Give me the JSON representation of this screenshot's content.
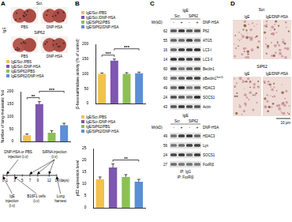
{
  "figure": {
    "A": {
      "label": "A",
      "side_label": "IgE",
      "rows": [
        "Scr.",
        "SiP62"
      ],
      "columns": [
        "PBS",
        "DNP-HSA"
      ]
    },
    "timeline": {
      "days": [
        0,
        1,
        3,
        5,
        7,
        9,
        12,
        14
      ],
      "unit": "(days)",
      "above": [
        {
          "text": "DNP-HSA or PBS injection (i.v)",
          "days": [
            1
          ]
        },
        {
          "text": "SiRNA injection (i.v)",
          "days": [
            7,
            9,
            12
          ]
        }
      ],
      "below": [
        {
          "text": "IgE injection (i.v)",
          "days": [
            0
          ]
        },
        {
          "text": "B16F1 cells (i.v)",
          "days": [
            3
          ]
        },
        {
          "text": "Lung harvest",
          "days": [
            14
          ]
        }
      ]
    },
    "B": {
      "label": "B"
    },
    "C": {
      "label": "C",
      "upper": {
        "treatment": "IgE",
        "groups": [
          "Scr.",
          "SiP62"
        ],
        "stimulus": "DNP-HSA",
        "signs": [
          "-",
          "+",
          "-",
          "+"
        ],
        "mr_title": "Mr(kD)",
        "bands": [
          {
            "name": "P62",
            "mr": 62
          },
          {
            "name": "ATG5",
            "mr": 55
          },
          {
            "name": "LC3-I",
            "mr": 16
          },
          {
            "name": "LC3-II",
            "mr": 14
          },
          {
            "name": "Beclin1",
            "mr": 60
          },
          {
            "name": "pBeclin1",
            "sup": "Ser15",
            "mr": 60
          },
          {
            "name": "HDAC3",
            "mr": 49
          },
          {
            "name": "SOCS1",
            "mr": 24
          },
          {
            "name": "Actin",
            "mr": 43
          }
        ]
      },
      "lower": {
        "treatment": "IgE",
        "groups": [
          "Scr.",
          "SiP62"
        ],
        "stimulus": "DNP-HSA",
        "signs": [
          "-",
          "+",
          "-",
          "+"
        ],
        "mr_title": "Mr(kD)",
        "bands": [
          {
            "name": "HDAC3",
            "mr": 49
          },
          {
            "name": "Lyn",
            "mr": 56
          },
          {
            "name": "SOCS1",
            "mr": 24
          },
          {
            "name": "FcεRIβ",
            "mr": 27
          }
        ],
        "ip": [
          "IP: IgG",
          "IP: FcεRIβ"
        ]
      }
    },
    "D": {
      "label": "D",
      "rows": [
        "Scr.",
        "SiP62"
      ],
      "columns": [
        "IgE",
        "IgE/DNP-HSA"
      ],
      "scale": "10 μm"
    }
  },
  "chart_data": [
    {
      "type": "bar",
      "categories": [
        "IgE/Scr./PBS",
        "IgE/Scr./DNP-HSA",
        "IgE/SiP62/PBS",
        "IgE/SiP62/DNP-HSA"
      ],
      "values": [
        25,
        150,
        35,
        65
      ],
      "errors": [
        5,
        10,
        8,
        8
      ],
      "colors": [
        "#f2c14e",
        "#7e57b0",
        "#8cc152",
        "#5b8fd6"
      ],
      "y_label": "Number of lung metastatic foci",
      "ylim": [
        0,
        200
      ],
      "yticks": [
        0,
        50,
        100,
        150,
        200
      ],
      "grid": false,
      "tick_labels": "y",
      "legend": "top",
      "annotations": [
        {
          "text": "**",
          "between": [
            0,
            1
          ]
        },
        {
          "text": "***",
          "between": [
            1,
            3
          ]
        }
      ]
    },
    {
      "type": "bar",
      "categories": [
        "IgE/Scr./PBS",
        "IgE/Scr./DNP-HSA",
        "IgE/SiP62/PBS",
        "IgE/SiP62/DNP-HSA"
      ],
      "values": [
        100,
        145,
        100,
        102
      ],
      "errors": [
        3,
        5,
        4,
        4
      ],
      "colors": [
        "#f2c14e",
        "#7e57b0",
        "#8cc152",
        "#5b8fd6"
      ],
      "y_label": "β-hexosaminidase activity (% of control)",
      "ylim": [
        0,
        200
      ],
      "yticks": [
        0,
        50,
        100,
        150,
        200
      ],
      "grid": false,
      "tick_labels": "y",
      "legend": "top",
      "annotations": [
        {
          "text": "***",
          "between": [
            0,
            1
          ]
        },
        {
          "text": "***",
          "between": [
            1,
            3
          ]
        }
      ]
    },
    {
      "type": "bar",
      "categories": [
        "IgE/Scr./PBS",
        "IgE/Scr./DNP-HSA",
        "IgE/SiP62/PBS",
        "IgE/SiP62/DNP-HSA"
      ],
      "values": [
        12,
        17,
        13,
        11
      ],
      "errors": [
        1,
        1.5,
        1,
        1
      ],
      "colors": [
        "#f2c14e",
        "#7e57b0",
        "#8cc152",
        "#5b8fd6"
      ],
      "y_label": "p62 expression level",
      "ylim": [
        0,
        25
      ],
      "yticks": [
        0,
        5,
        10,
        15,
        20,
        25
      ],
      "grid": false,
      "tick_labels": "y",
      "legend": "top",
      "annotations": [
        {
          "text": "**",
          "between": [
            1,
            3
          ]
        }
      ]
    }
  ]
}
